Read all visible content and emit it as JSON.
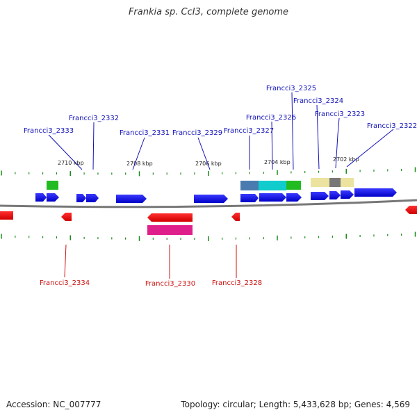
{
  "title": "Frankia sp. CcI3, complete genome",
  "footer": {
    "accession": "Accession: NC_007777",
    "summary": "Topology: circular; Length: 5,433,628 bp; Genes: 4,569"
  },
  "colors": {
    "forward_gene": "#1010e0",
    "reverse_gene": "#ee1010",
    "forward_label": "#1111bb",
    "reverse_label": "#cc1111",
    "tick": "#1a8a1a",
    "backbone": "#777777"
  },
  "scale_labels": [
    "2710 kbp",
    "2708 kbp",
    "2706 kbp",
    "2704 kbp",
    "2702 kbp"
  ],
  "forward_labels": [
    "Francci3_2333",
    "Francci3_2332",
    "Francci3_2331",
    "Francci3_2329",
    "Francci3_2327",
    "Francci3_2326",
    "Francci3_2325",
    "Francci3_2324",
    "Francci3_2323",
    "Francci3_2322"
  ],
  "reverse_labels": [
    "Francci3_2334",
    "Francci3_2330",
    "Francci3_2328"
  ]
}
